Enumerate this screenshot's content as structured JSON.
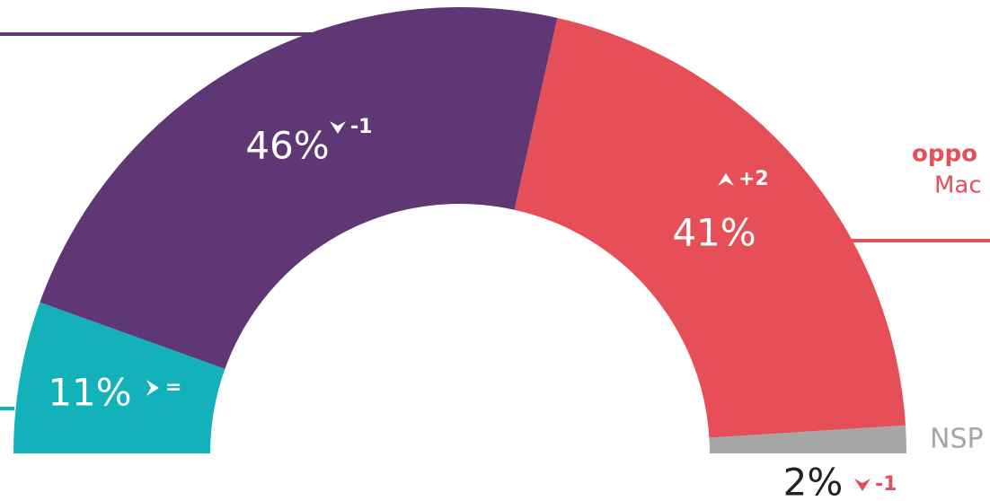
{
  "chart_data": {
    "type": "pie",
    "series": [
      {
        "name": null,
        "sublabel": null,
        "color": "#13b1b9",
        "values": [
          11
        ],
        "value_labels": [
          "11%"
        ],
        "change": 0,
        "change_label": "="
      },
      {
        "name": null,
        "sublabel": null,
        "color": "#603775",
        "values": [
          46
        ],
        "value_labels": [
          "46%"
        ],
        "change": -1,
        "change_label": "-1"
      },
      {
        "name": "oppo",
        "sublabel": "Mac",
        "color": "#e64f57",
        "values": [
          41
        ],
        "value_labels": [
          "41%"
        ],
        "change": 2,
        "change_label": "+2"
      },
      {
        "name": "NSP",
        "sublabel": null,
        "color": "#a6a6a6",
        "values": [
          2
        ],
        "value_labels": [
          "2%"
        ],
        "change": -1,
        "change_label": "-1"
      }
    ]
  }
}
